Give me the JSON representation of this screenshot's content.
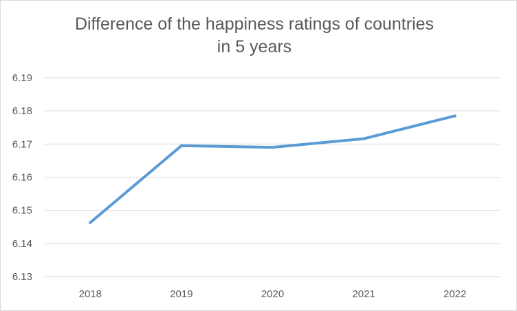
{
  "chart_data": {
    "type": "line",
    "title": "Difference of the happiness ratings of countries\nin 5 years",
    "xlabel": "",
    "ylabel": "",
    "categories": [
      "2018",
      "2019",
      "2020",
      "2021",
      "2022"
    ],
    "series": [
      {
        "values": [
          6.1463,
          6.1695,
          6.169,
          6.1716,
          6.1785
        ]
      }
    ],
    "ylim": [
      6.13,
      6.19
    ],
    "yticks": [
      "6.13",
      "6.14",
      "6.15",
      "6.16",
      "6.17",
      "6.18",
      "6.19"
    ],
    "grid": true,
    "legend": "none",
    "colors": {
      "series": "#5b9bd5",
      "grid": "#d9d9d9",
      "text": "#595959"
    }
  }
}
